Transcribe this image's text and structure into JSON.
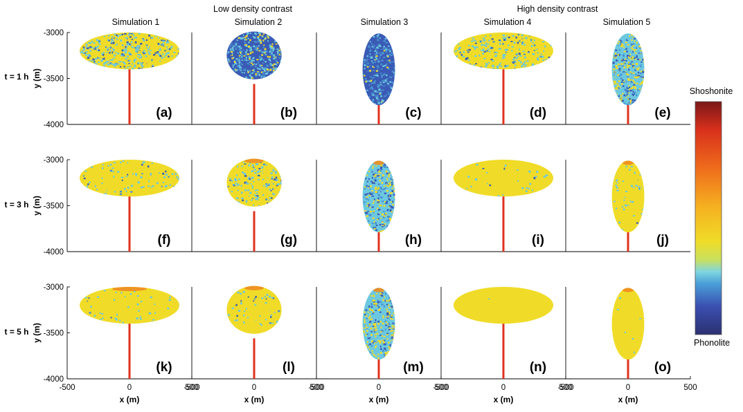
{
  "figure": {
    "group_labels": [
      "Low density contrast",
      "High density contrast"
    ],
    "column_titles": [
      "Simulation 1",
      "Simulation 2",
      "Simulation 3",
      "Simulation 4",
      "Simulation 5"
    ],
    "row_labels": [
      "t = 1 h",
      "t = 3 h",
      "t = 5 h"
    ],
    "panel_labels": [
      "(a)",
      "(b)",
      "(c)",
      "(d)",
      "(e)",
      "(f)",
      "(g)",
      "(h)",
      "(i)",
      "(j)",
      "(k)",
      "(l)",
      "(m)",
      "(n)",
      "(o)"
    ],
    "colorbar": {
      "top_label": "Shoshonite",
      "bottom_label": "Phonolite"
    },
    "colors": {
      "phonolite_dark": "#2b3a96",
      "phonolite": "#3a5bb5",
      "mid_blue": "#4a90d0",
      "cyan": "#6cc8e0",
      "yellow": "#f0dc28",
      "orange": "#f08c20",
      "red": "#e0321e",
      "shoshonite": "#8a1a1a"
    }
  },
  "chart_data": {
    "type": "scatter",
    "description_note": "",
    "xlabel": "x (m)",
    "ylabel": "y (m)",
    "xlim": [
      -500,
      500
    ],
    "ylim": [
      -4000,
      -3000
    ],
    "x_ticks": [
      "-500",
      "0",
      "500"
    ],
    "y_ticks": [
      "-3000",
      "-3500",
      "-4000"
    ],
    "conduit": {
      "x": 0,
      "y_top": -3800,
      "y_bottom": -4000
    },
    "simulations": [
      {
        "name": "Simulation 1",
        "chamber": {
          "x_center": 0,
          "y_center": -3200,
          "half_width": 400,
          "half_height": 200
        }
      },
      {
        "name": "Simulation 2",
        "chamber": {
          "x_center": 0,
          "y_center": -3250,
          "half_width": 220,
          "half_height": 260
        }
      },
      {
        "name": "Simulation 3",
        "chamber": {
          "x_center": 0,
          "y_center": -3400,
          "half_width": 130,
          "half_height": 390
        }
      },
      {
        "name": "Simulation 4",
        "chamber": {
          "x_center": 0,
          "y_center": -3200,
          "half_width": 400,
          "half_height": 200
        }
      },
      {
        "name": "Simulation 5",
        "chamber": {
          "x_center": 0,
          "y_center": -3400,
          "half_width": 130,
          "half_height": 390
        }
      }
    ],
    "panels": [
      {
        "label": "(a)",
        "sim": 0,
        "row": 0,
        "mix": [
          0.45,
          0.35,
          0.2
        ],
        "conduit_top": -3390
      },
      {
        "label": "(b)",
        "sim": 1,
        "row": 0,
        "mix": [
          0.15,
          0.35,
          0.5
        ],
        "conduit_top": -3560
      },
      {
        "label": "(c)",
        "sim": 2,
        "row": 0,
        "mix": [
          0.03,
          0.17,
          0.8
        ],
        "conduit_top": -3780
      },
      {
        "label": "(d)",
        "sim": 3,
        "row": 0,
        "mix": [
          0.6,
          0.3,
          0.1
        ],
        "conduit_top": -3390
      },
      {
        "label": "(e)",
        "sim": 4,
        "row": 0,
        "mix": [
          0.25,
          0.5,
          0.25
        ],
        "conduit_top": -3780
      },
      {
        "label": "(f)",
        "sim": 0,
        "row": 1,
        "mix": [
          0.85,
          0.12,
          0.03
        ],
        "conduit_top": -3390
      },
      {
        "label": "(g)",
        "sim": 1,
        "row": 1,
        "mix": [
          0.75,
          0.2,
          0.05
        ],
        "conduit_top": -3560
      },
      {
        "label": "(h)",
        "sim": 2,
        "row": 1,
        "mix": [
          0.2,
          0.5,
          0.3
        ],
        "conduit_top": -3780
      },
      {
        "label": "(i)",
        "sim": 3,
        "row": 1,
        "mix": [
          0.95,
          0.04,
          0.01
        ],
        "conduit_top": -3390
      },
      {
        "label": "(j)",
        "sim": 4,
        "row": 1,
        "mix": [
          0.9,
          0.08,
          0.02
        ],
        "conduit_top": -3780
      },
      {
        "label": "(k)",
        "sim": 0,
        "row": 2,
        "mix": [
          0.93,
          0.06,
          0.01
        ],
        "conduit_top": -3390
      },
      {
        "label": "(l)",
        "sim": 1,
        "row": 2,
        "mix": [
          0.88,
          0.1,
          0.02
        ],
        "conduit_top": -3560
      },
      {
        "label": "(m)",
        "sim": 2,
        "row": 2,
        "mix": [
          0.3,
          0.5,
          0.2
        ],
        "conduit_top": -3780
      },
      {
        "label": "(n)",
        "sim": 3,
        "row": 2,
        "mix": [
          0.99,
          0.01,
          0.0
        ],
        "conduit_top": -3390
      },
      {
        "label": "(o)",
        "sim": 4,
        "row": 2,
        "mix": [
          0.98,
          0.02,
          0.0
        ],
        "conduit_top": -3780
      }
    ]
  }
}
